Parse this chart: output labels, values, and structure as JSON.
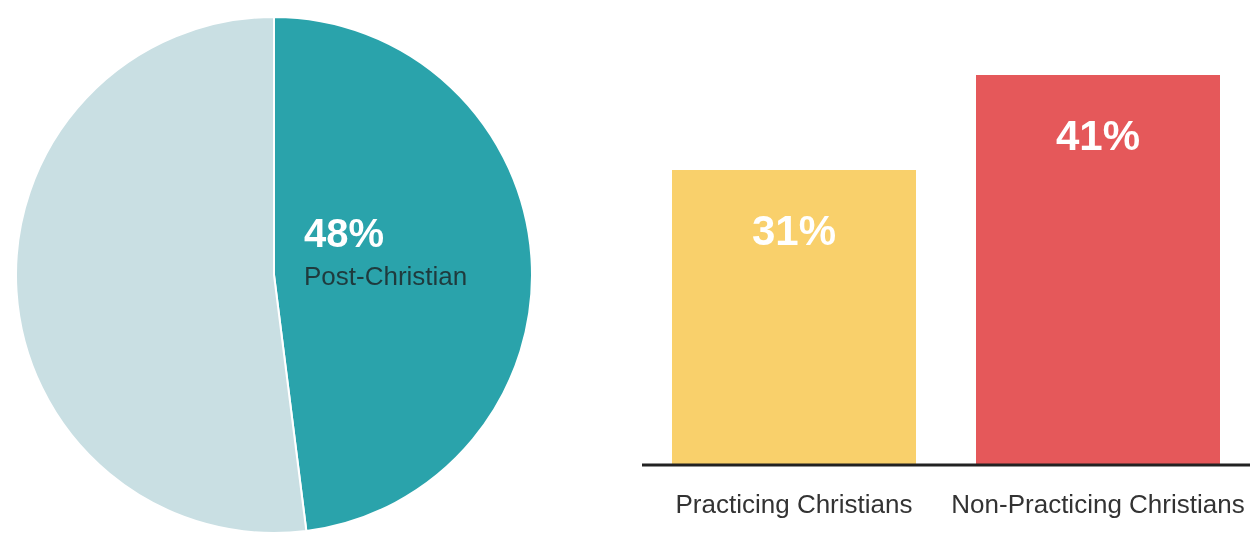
{
  "chart_data": [
    {
      "type": "pie",
      "categories": [
        "Post-Christian",
        null
      ],
      "values": [
        48,
        52
      ],
      "colors": [
        "#2aa3ab",
        "#c9dfe3"
      ],
      "value_labels": [
        "48%",
        null
      ]
    },
    {
      "type": "bar",
      "categories": [
        "Practicing Christians",
        "Non-Practicing Christians"
      ],
      "values": [
        31,
        41
      ],
      "colors": [
        "#f9d06b",
        "#e5585a"
      ],
      "value_labels": [
        "31%",
        "41%"
      ]
    }
  ]
}
